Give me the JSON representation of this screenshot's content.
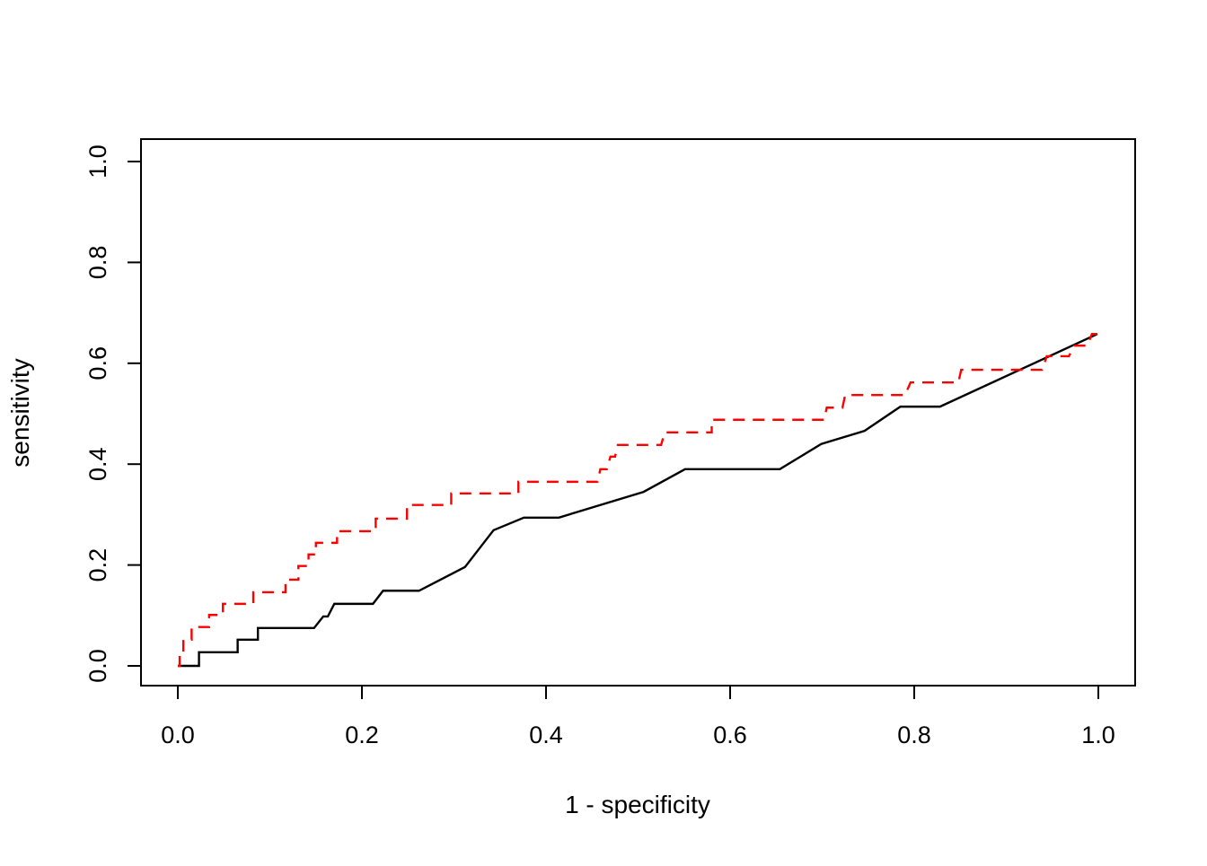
{
  "figure": {
    "background": "#ffffff",
    "axis_color": "#000000"
  },
  "chart_data": {
    "type": "line",
    "subtype": "roc-step-curves",
    "title": "",
    "xlabel": "1 - specificity",
    "ylabel": "sensitivity",
    "xlim": [
      0,
      1
    ],
    "ylim": [
      0,
      1
    ],
    "grid": false,
    "legend": "none",
    "x_ticks": [
      0.0,
      0.2,
      0.4,
      0.6,
      0.8,
      1.0
    ],
    "x_tick_labels": [
      "0.0",
      "0.2",
      "0.4",
      "0.6",
      "0.8",
      "1.0"
    ],
    "y_ticks": [
      0.0,
      0.2,
      0.4,
      0.6,
      0.8,
      1.0
    ],
    "y_tick_labels": [
      "0.0",
      "0.2",
      "0.4",
      "0.6",
      "0.8",
      "1.0"
    ],
    "series": [
      {
        "name": "roc-curve-solid-black",
        "color": "#000000",
        "style": "solid",
        "points": [
          [
            0.0,
            0.0
          ],
          [
            0.023,
            0.0
          ],
          [
            0.023,
            0.027
          ],
          [
            0.065,
            0.027
          ],
          [
            0.065,
            0.052
          ],
          [
            0.087,
            0.052
          ],
          [
            0.087,
            0.075
          ],
          [
            0.148,
            0.075
          ],
          [
            0.158,
            0.098
          ],
          [
            0.163,
            0.098
          ],
          [
            0.17,
            0.123
          ],
          [
            0.212,
            0.123
          ],
          [
            0.223,
            0.149
          ],
          [
            0.262,
            0.149
          ],
          [
            0.312,
            0.196
          ],
          [
            0.343,
            0.269
          ],
          [
            0.376,
            0.294
          ],
          [
            0.414,
            0.294
          ],
          [
            0.506,
            0.345
          ],
          [
            0.551,
            0.39
          ],
          [
            0.654,
            0.39
          ],
          [
            0.699,
            0.44
          ],
          [
            0.746,
            0.466
          ],
          [
            0.785,
            0.514
          ],
          [
            0.828,
            0.514
          ],
          [
            0.999,
            0.658
          ]
        ]
      },
      {
        "name": "roc-curve-dashed-red",
        "color": "#ff0000",
        "style": "dashed",
        "points": [
          [
            0.0,
            0.0
          ],
          [
            0.002,
            0.0
          ],
          [
            0.002,
            0.025
          ],
          [
            0.006,
            0.025
          ],
          [
            0.006,
            0.052
          ],
          [
            0.015,
            0.052
          ],
          [
            0.015,
            0.077
          ],
          [
            0.034,
            0.077
          ],
          [
            0.034,
            0.101
          ],
          [
            0.049,
            0.101
          ],
          [
            0.049,
            0.123
          ],
          [
            0.082,
            0.123
          ],
          [
            0.082,
            0.146
          ],
          [
            0.117,
            0.146
          ],
          [
            0.117,
            0.171
          ],
          [
            0.131,
            0.171
          ],
          [
            0.131,
            0.198
          ],
          [
            0.142,
            0.198
          ],
          [
            0.142,
            0.221
          ],
          [
            0.15,
            0.221
          ],
          [
            0.15,
            0.244
          ],
          [
            0.173,
            0.244
          ],
          [
            0.173,
            0.267
          ],
          [
            0.215,
            0.267
          ],
          [
            0.215,
            0.292
          ],
          [
            0.249,
            0.292
          ],
          [
            0.249,
            0.319
          ],
          [
            0.297,
            0.319
          ],
          [
            0.297,
            0.342
          ],
          [
            0.37,
            0.342
          ],
          [
            0.37,
            0.365
          ],
          [
            0.456,
            0.365
          ],
          [
            0.459,
            0.39
          ],
          [
            0.466,
            0.39
          ],
          [
            0.47,
            0.415
          ],
          [
            0.475,
            0.415
          ],
          [
            0.478,
            0.438
          ],
          [
            0.525,
            0.438
          ],
          [
            0.529,
            0.463
          ],
          [
            0.58,
            0.463
          ],
          [
            0.58,
            0.488
          ],
          [
            0.702,
            0.488
          ],
          [
            0.705,
            0.512
          ],
          [
            0.722,
            0.512
          ],
          [
            0.725,
            0.537
          ],
          [
            0.79,
            0.537
          ],
          [
            0.796,
            0.562
          ],
          [
            0.848,
            0.562
          ],
          [
            0.851,
            0.587
          ],
          [
            0.939,
            0.587
          ],
          [
            0.944,
            0.614
          ],
          [
            0.968,
            0.614
          ],
          [
            0.974,
            0.635
          ],
          [
            0.988,
            0.635
          ],
          [
            0.993,
            0.658
          ],
          [
            1.0,
            0.658
          ]
        ]
      }
    ]
  }
}
